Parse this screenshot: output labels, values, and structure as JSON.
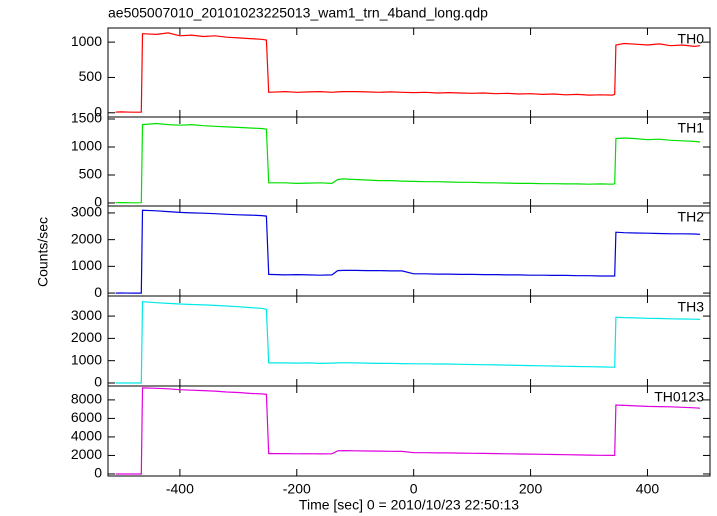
{
  "title": "ae505007010_20101023225013_wam1_trn_4band_long.qdp",
  "y_label": "Counts/sec",
  "x_label": "Time [sec] 0 = 2010/10/23 22:50:13",
  "chart_data": [
    {
      "type": "line",
      "label": "TH0",
      "color": "#ff0000",
      "xlim": [
        -523,
        507
      ],
      "xticks": [
        -400,
        -200,
        0,
        200,
        400
      ],
      "ylim": [
        -60,
        1200
      ],
      "yticks": [
        0,
        500,
        1000
      ],
      "x": [
        -510,
        -500,
        -480,
        -466,
        -464,
        -440,
        -420,
        -400,
        -380,
        -360,
        -340,
        -320,
        -300,
        -280,
        -260,
        -252,
        -248,
        -220,
        -200,
        -180,
        -160,
        -140,
        -130,
        -120,
        -100,
        -80,
        -60,
        -40,
        -20,
        0,
        20,
        40,
        60,
        80,
        100,
        120,
        140,
        160,
        180,
        200,
        220,
        240,
        260,
        280,
        300,
        320,
        340,
        344,
        346,
        360,
        380,
        400,
        420,
        440,
        460,
        480,
        490
      ],
      "values": [
        10,
        12,
        8,
        10,
        1120,
        1110,
        1130,
        1090,
        1100,
        1080,
        1090,
        1070,
        1060,
        1050,
        1040,
        1030,
        290,
        300,
        290,
        295,
        300,
        290,
        295,
        300,
        300,
        295,
        290,
        295,
        290,
        285,
        290,
        280,
        285,
        280,
        275,
        280,
        270,
        275,
        265,
        270,
        260,
        265,
        255,
        260,
        250,
        255,
        250,
        260,
        960,
        980,
        970,
        960,
        975,
        950,
        960,
        940,
        950
      ]
    },
    {
      "type": "line",
      "label": "TH1",
      "color": "#00e000",
      "xlim": [
        -523,
        507
      ],
      "xticks": [
        -400,
        -200,
        0,
        200,
        400
      ],
      "ylim": [
        -54,
        1536
      ],
      "yticks": [
        0,
        500,
        1000,
        1500
      ],
      "x": [
        -510,
        -500,
        -480,
        -466,
        -464,
        -440,
        -420,
        -400,
        -380,
        -360,
        -340,
        -320,
        -300,
        -280,
        -260,
        -252,
        -248,
        -220,
        -200,
        -180,
        -160,
        -140,
        -130,
        -120,
        -100,
        -80,
        -60,
        -40,
        -20,
        0,
        20,
        40,
        60,
        80,
        100,
        120,
        140,
        160,
        180,
        200,
        220,
        240,
        260,
        280,
        300,
        320,
        340,
        344,
        346,
        360,
        380,
        400,
        420,
        440,
        460,
        480,
        490
      ],
      "values": [
        5,
        6,
        4,
        5,
        1400,
        1420,
        1400,
        1390,
        1400,
        1380,
        1370,
        1360,
        1350,
        1340,
        1330,
        1320,
        360,
        360,
        350,
        355,
        360,
        350,
        420,
        430,
        420,
        410,
        400,
        400,
        390,
        385,
        380,
        380,
        375,
        370,
        370,
        360,
        360,
        355,
        350,
        350,
        345,
        345,
        340,
        340,
        335,
        340,
        335,
        340,
        1150,
        1160,
        1150,
        1130,
        1140,
        1120,
        1110,
        1100,
        1090
      ]
    },
    {
      "type": "line",
      "label": "TH2",
      "color": "#0000e0",
      "xlim": [
        -523,
        507
      ],
      "xticks": [
        -400,
        -200,
        0,
        200,
        400
      ],
      "ylim": [
        -110,
        3260
      ],
      "yticks": [
        0,
        1000,
        2000,
        3000
      ],
      "x": [
        -510,
        -500,
        -480,
        -466,
        -464,
        -440,
        -420,
        -400,
        -380,
        -360,
        -340,
        -320,
        -300,
        -280,
        -260,
        -252,
        -248,
        -220,
        -200,
        -180,
        -160,
        -140,
        -130,
        -120,
        -100,
        -80,
        -60,
        -40,
        -20,
        0,
        20,
        40,
        60,
        80,
        100,
        120,
        140,
        160,
        180,
        200,
        220,
        240,
        260,
        280,
        300,
        320,
        340,
        344,
        346,
        360,
        380,
        400,
        420,
        440,
        460,
        480,
        490
      ],
      "values": [
        0,
        2,
        -2,
        0,
        3100,
        3080,
        3050,
        3020,
        3000,
        2990,
        2970,
        2950,
        2930,
        2920,
        2900,
        2880,
        700,
        680,
        690,
        680,
        670,
        680,
        840,
        850,
        850,
        840,
        840,
        830,
        830,
        720,
        720,
        710,
        710,
        700,
        700,
        690,
        690,
        680,
        680,
        670,
        670,
        660,
        660,
        650,
        650,
        640,
        640,
        640,
        2280,
        2260,
        2250,
        2240,
        2230,
        2220,
        2220,
        2210,
        2200
      ]
    },
    {
      "type": "line",
      "label": "TH3",
      "color": "#00e8e8",
      "xlim": [
        -523,
        507
      ],
      "xticks": [
        -400,
        -200,
        0,
        200,
        400
      ],
      "ylim": [
        -135,
        3900
      ],
      "yticks": [
        0,
        1000,
        2000,
        3000
      ],
      "x": [
        -510,
        -500,
        -480,
        -466,
        -464,
        -440,
        -420,
        -400,
        -380,
        -360,
        -340,
        -320,
        -300,
        -280,
        -260,
        -252,
        -248,
        -220,
        -200,
        -180,
        -160,
        -140,
        -130,
        -120,
        -100,
        -80,
        -60,
        -40,
        -20,
        0,
        20,
        40,
        60,
        80,
        100,
        120,
        140,
        160,
        180,
        200,
        220,
        240,
        260,
        280,
        300,
        320,
        340,
        344,
        346,
        360,
        380,
        400,
        420,
        440,
        460,
        480,
        490
      ],
      "values": [
        0,
        0,
        0,
        0,
        3650,
        3600,
        3570,
        3540,
        3520,
        3500,
        3480,
        3450,
        3420,
        3380,
        3350,
        3300,
        900,
        900,
        890,
        900,
        880,
        890,
        900,
        910,
        900,
        890,
        880,
        880,
        870,
        860,
        860,
        850,
        850,
        840,
        830,
        820,
        810,
        800,
        790,
        780,
        770,
        760,
        750,
        740,
        730,
        720,
        710,
        710,
        2950,
        2930,
        2920,
        2900,
        2890,
        2880,
        2870,
        2860,
        2850
      ]
    },
    {
      "type": "line",
      "label": "TH0123",
      "color": "#e000e0",
      "xlim": [
        -523,
        507
      ],
      "xticks": [
        -400,
        -200,
        0,
        200,
        400
      ],
      "ylim": [
        -220,
        9500
      ],
      "yticks": [
        0,
        2000,
        4000,
        6000,
        8000
      ],
      "x": [
        -510,
        -500,
        -480,
        -466,
        -464,
        -440,
        -420,
        -400,
        -380,
        -360,
        -340,
        -320,
        -300,
        -280,
        -260,
        -252,
        -248,
        -220,
        -200,
        -180,
        -160,
        -140,
        -130,
        -120,
        -100,
        -80,
        -60,
        -40,
        -20,
        0,
        20,
        40,
        60,
        80,
        100,
        120,
        140,
        160,
        180,
        200,
        220,
        240,
        260,
        280,
        300,
        320,
        340,
        344,
        346,
        360,
        380,
        400,
        420,
        440,
        460,
        480,
        490
      ],
      "values": [
        0,
        0,
        0,
        0,
        9300,
        9250,
        9200,
        9100,
        9050,
        9000,
        8950,
        8850,
        8800,
        8700,
        8650,
        8600,
        2200,
        2200,
        2180,
        2190,
        2170,
        2180,
        2500,
        2520,
        2500,
        2480,
        2470,
        2450,
        2440,
        2300,
        2300,
        2280,
        2270,
        2250,
        2230,
        2220,
        2200,
        2180,
        2160,
        2140,
        2120,
        2100,
        2080,
        2060,
        2040,
        2020,
        2000,
        2000,
        7450,
        7400,
        7350,
        7300,
        7280,
        7250,
        7200,
        7150,
        7100
      ]
    }
  ]
}
